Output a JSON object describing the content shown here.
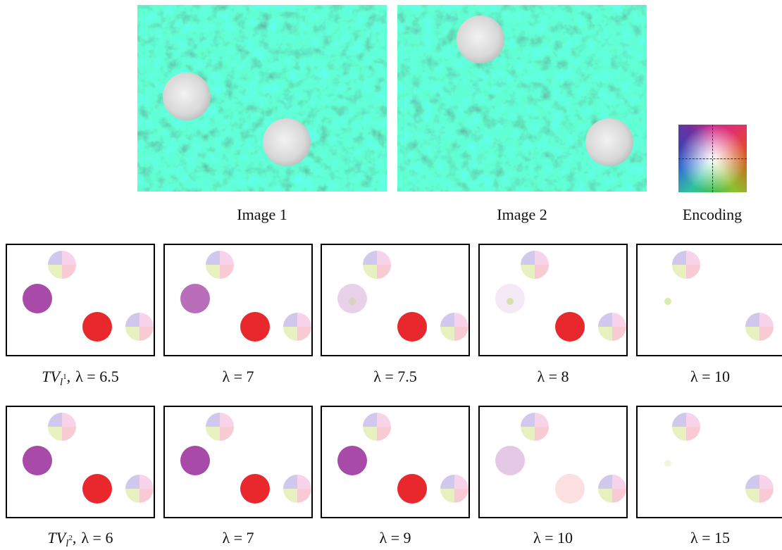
{
  "figure": {
    "top": {
      "labels": [
        "Image 1",
        "Image 2",
        "Encoding"
      ]
    },
    "rows": [
      {
        "captions": [
          {
            "method": "TV",
            "norm": "l",
            "norm_exp": "1",
            "sep": ",",
            "lambda": "λ = 6.5"
          },
          {
            "lambda": "λ = 7"
          },
          {
            "lambda": "λ = 7.5"
          },
          {
            "lambda": "λ = 8"
          },
          {
            "lambda": "λ = 10"
          }
        ]
      },
      {
        "captions": [
          {
            "method": "TV",
            "norm": "l",
            "norm_exp": "2",
            "sep": ",",
            "lambda": "λ = 6"
          },
          {
            "lambda": "λ = 7"
          },
          {
            "lambda": "λ = 9"
          },
          {
            "lambda": "λ = 10"
          },
          {
            "lambda": "λ = 15"
          }
        ]
      }
    ]
  }
}
